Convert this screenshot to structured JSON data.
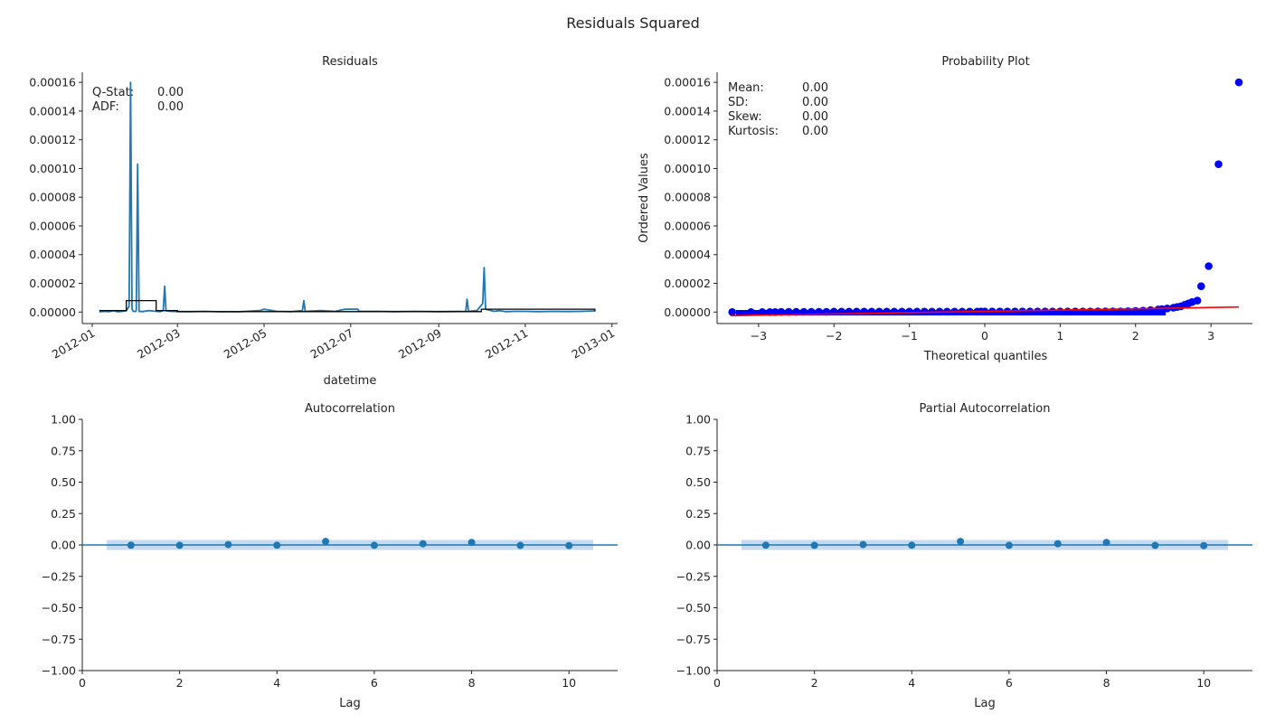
{
  "figure": {
    "title": "Residuals Squared"
  },
  "colors": {
    "series": "#1f77b4",
    "rolling": "#000000",
    "points": "#0000ff",
    "fit": "#ff0000",
    "confband": "#c6dbef"
  },
  "chart_data": [
    {
      "type": "line",
      "panel": "residuals",
      "title": "Residuals",
      "xlabel": "datetime",
      "ylabel": "",
      "x_is_date": true,
      "xlim": [
        "2011-12-25",
        "2013-01-05"
      ],
      "ylim": [
        -8e-06,
        0.000167
      ],
      "xticks": [
        "2012-01",
        "2012-03",
        "2012-05",
        "2012-07",
        "2012-09",
        "2012-11",
        "2013-01"
      ],
      "xtick_dates": [
        "2012-01-01",
        "2012-03-01",
        "2012-05-01",
        "2012-07-01",
        "2012-09-01",
        "2012-11-01",
        "2013-01-01"
      ],
      "yticks": [
        "0.00000",
        "0.00002",
        "0.00004",
        "0.00006",
        "0.00008",
        "0.00010",
        "0.00012",
        "0.00014",
        "0.00016"
      ],
      "ytick_values": [
        0,
        2e-05,
        4e-05,
        6e-05,
        8e-05,
        0.0001,
        0.00012,
        0.00014,
        0.00016
      ],
      "stats": [
        {
          "label": "Q-Stat:",
          "value": "0.00"
        },
        {
          "label": "ADF:",
          "value": "0.00"
        }
      ],
      "series": [
        {
          "x": [
            "2012-01-06",
            "2012-01-10",
            "2012-01-13",
            "2012-01-16",
            "2012-01-19",
            "2012-01-22",
            "2012-01-25",
            "2012-01-27",
            "2012-01-28",
            "2012-01-29",
            "2012-01-30",
            "2012-01-31",
            "2012-02-01",
            "2012-02-02",
            "2012-02-03",
            "2012-02-05",
            "2012-02-10",
            "2012-02-15",
            "2012-02-18",
            "2012-02-20",
            "2012-02-21",
            "2012-02-22",
            "2012-02-25",
            "2012-03-01",
            "2012-03-10",
            "2012-03-20",
            "2012-04-01",
            "2012-04-15",
            "2012-04-28",
            "2012-05-01",
            "2012-05-10",
            "2012-05-20",
            "2012-05-28",
            "2012-05-29",
            "2012-05-30",
            "2012-06-10",
            "2012-06-20",
            "2012-06-27",
            "2012-06-28",
            "2012-07-06",
            "2012-07-07",
            "2012-07-20",
            "2012-08-01",
            "2012-08-15",
            "2012-09-01",
            "2012-09-10",
            "2012-09-20",
            "2012-09-21",
            "2012-09-22",
            "2012-09-28",
            "2012-10-02",
            "2012-10-03",
            "2012-10-04",
            "2012-10-10",
            "2012-10-14",
            "2012-10-18",
            "2012-10-25",
            "2012-11-01",
            "2012-11-10",
            "2012-11-20",
            "2012-12-01",
            "2012-12-10",
            "2012-12-20"
          ],
          "values": [
            2e-07,
            5e-07,
            3e-07,
            1e-06,
            2e-07,
            5e-07,
            1e-06,
            4e-06,
            0.00016,
            2e-06,
            5e-07,
            3e-07,
            1e-06,
            0.000103,
            5e-07,
            3e-07,
            1e-06,
            5e-07,
            3e-07,
            1e-06,
            1.8e-05,
            1e-06,
            5e-07,
            4e-07,
            3e-07,
            5e-07,
            2e-07,
            3e-07,
            1e-06,
            2e-06,
            5e-07,
            3e-07,
            1e-06,
            8e-06,
            5e-07,
            1e-06,
            5e-07,
            2e-06,
            2e-06,
            2e-06,
            5e-07,
            5e-07,
            3e-07,
            5e-07,
            3e-07,
            4e-07,
            5e-07,
            9e-06,
            5e-07,
            1e-06,
            6e-06,
            3.1e-05,
            2e-06,
            5e-07,
            1e-06,
            3e-07,
            5e-07,
            5e-07,
            3e-07,
            5e-07,
            4e-07,
            5e-07,
            8e-07
          ]
        },
        {
          "name": "",
          "style": "step",
          "x": [
            "2012-01-06",
            "2012-01-25",
            "2012-02-01",
            "2012-02-15",
            "2012-03-01",
            "2012-10-01",
            "2012-10-05",
            "2012-12-20"
          ],
          "values": [
            1e-06,
            8e-06,
            8e-06,
            1e-06,
            3e-07,
            2e-06,
            2e-06,
            5e-07
          ]
        }
      ]
    },
    {
      "type": "scatter",
      "panel": "probplot",
      "title": "Probability Plot",
      "xlabel": "Theoretical quantiles",
      "ylabel": "Ordered Values",
      "xlim": [
        -3.55,
        3.55
      ],
      "ylim": [
        -8e-06,
        0.000167
      ],
      "xticks": [
        "−3",
        "−2",
        "−1",
        "0",
        "1",
        "2",
        "3"
      ],
      "xtick_values": [
        -3,
        -2,
        -1,
        0,
        1,
        2,
        3
      ],
      "yticks": [
        "0.00000",
        "0.00002",
        "0.00004",
        "0.00006",
        "0.00008",
        "0.00010",
        "0.00012",
        "0.00014",
        "0.00016"
      ],
      "ytick_values": [
        0,
        2e-05,
        4e-05,
        6e-05,
        8e-05,
        0.0001,
        0.00012,
        0.00014,
        0.00016
      ],
      "stats": [
        {
          "label": "Mean:",
          "value": "0.00"
        },
        {
          "label": "SD:",
          "value": "0.00"
        },
        {
          "label": "Skew:",
          "value": "0.00"
        },
        {
          "label": "Kurtosis:",
          "value": "0.00"
        }
      ],
      "points": {
        "x": [
          -3.35,
          -3.1,
          -2.95,
          -2.85,
          -2.78,
          -2.7,
          -2.6,
          -2.5,
          -2.4,
          -2.3,
          -2.2,
          -2.1,
          -2.0,
          -1.9,
          -1.8,
          -1.7,
          -1.6,
          -1.5,
          -1.4,
          -1.3,
          -1.2,
          -1.1,
          -1.0,
          -0.9,
          -0.8,
          -0.7,
          -0.6,
          -0.5,
          -0.4,
          -0.3,
          -0.2,
          -0.1,
          -0.05,
          0.0,
          0.1,
          0.2,
          0.3,
          0.4,
          0.5,
          0.6,
          0.7,
          0.8,
          0.9,
          1.0,
          1.1,
          1.2,
          1.3,
          1.4,
          1.5,
          1.6,
          1.7,
          1.8,
          1.9,
          2.0,
          2.1,
          2.2,
          2.3,
          2.35,
          2.42,
          2.5,
          2.55,
          2.6,
          2.65,
          2.7,
          2.75,
          2.82,
          2.87,
          2.97,
          3.1,
          3.37
        ],
        "y": [
          0,
          0,
          0,
          0,
          0,
          1e-07,
          1e-07,
          1e-07,
          2e-07,
          2e-07,
          2e-07,
          2e-07,
          3e-07,
          3e-07,
          3e-07,
          3e-07,
          3e-07,
          3e-07,
          3e-07,
          3e-07,
          3e-07,
          3e-07,
          3e-07,
          3e-07,
          3e-07,
          3e-07,
          3e-07,
          3e-07,
          3e-07,
          3e-07,
          3e-07,
          3e-07,
          4e-07,
          4e-07,
          4e-07,
          4e-07,
          4e-07,
          4e-07,
          4e-07,
          4e-07,
          4e-07,
          4e-07,
          4e-07,
          4e-07,
          4e-07,
          4e-07,
          4e-07,
          4e-07,
          5e-07,
          5e-07,
          5e-07,
          5e-07,
          6e-07,
          8e-07,
          1e-06,
          1.3e-06,
          1.8e-06,
          2e-06,
          2.5e-06,
          3e-06,
          3.5e-06,
          4e-06,
          5e-06,
          6e-06,
          7e-06,
          8e-06,
          1.8e-05,
          3.2e-05,
          0.000103,
          0.00016
        ]
      },
      "fit_line": {
        "x": [
          -3.37,
          3.37
        ],
        "y": [
          -2.5e-06,
          3.5e-06
        ]
      }
    },
    {
      "type": "bar",
      "panel": "acf",
      "title": "Autocorrelation",
      "xlabel": "Lag",
      "ylabel": "",
      "xlim": [
        0,
        11
      ],
      "ylim": [
        -1,
        1
      ],
      "xticks": [
        "0",
        "2",
        "4",
        "6",
        "8",
        "10"
      ],
      "xtick_values": [
        0,
        2,
        4,
        6,
        8,
        10
      ],
      "yticks": [
        "−1.00",
        "−0.75",
        "−0.50",
        "−0.25",
        "0.00",
        "0.25",
        "0.50",
        "0.75",
        "1.00"
      ],
      "ytick_values": [
        -1,
        -0.75,
        -0.5,
        -0.25,
        0,
        0.25,
        0.5,
        0.75,
        1
      ],
      "lags": [
        1,
        2,
        3,
        4,
        5,
        6,
        7,
        8,
        9,
        10
      ],
      "values": [
        -0.002,
        -0.003,
        0.003,
        -0.002,
        0.028,
        -0.003,
        0.01,
        0.02,
        -0.004,
        -0.005
      ],
      "conf_band": {
        "x": [
          0.5,
          10.5
        ],
        "lower": -0.04,
        "upper": 0.04
      }
    },
    {
      "type": "bar",
      "panel": "pacf",
      "title": "Partial Autocorrelation",
      "xlabel": "Lag",
      "ylabel": "",
      "xlim": [
        0,
        11
      ],
      "ylim": [
        -1,
        1
      ],
      "xticks": [
        "0",
        "2",
        "4",
        "6",
        "8",
        "10"
      ],
      "xtick_values": [
        0,
        2,
        4,
        6,
        8,
        10
      ],
      "yticks": [
        "−1.00",
        "−0.75",
        "−0.50",
        "−0.25",
        "0.00",
        "0.25",
        "0.50",
        "0.75",
        "1.00"
      ],
      "ytick_values": [
        -1,
        -0.75,
        -0.5,
        -0.25,
        0,
        0.25,
        0.5,
        0.75,
        1
      ],
      "lags": [
        1,
        2,
        3,
        4,
        5,
        6,
        7,
        8,
        9,
        10
      ],
      "values": [
        -0.002,
        -0.003,
        0.003,
        -0.002,
        0.028,
        -0.003,
        0.01,
        0.02,
        -0.004,
        -0.005
      ],
      "conf_band": {
        "x": [
          0.5,
          10.5
        ],
        "lower": -0.04,
        "upper": 0.04
      }
    }
  ]
}
